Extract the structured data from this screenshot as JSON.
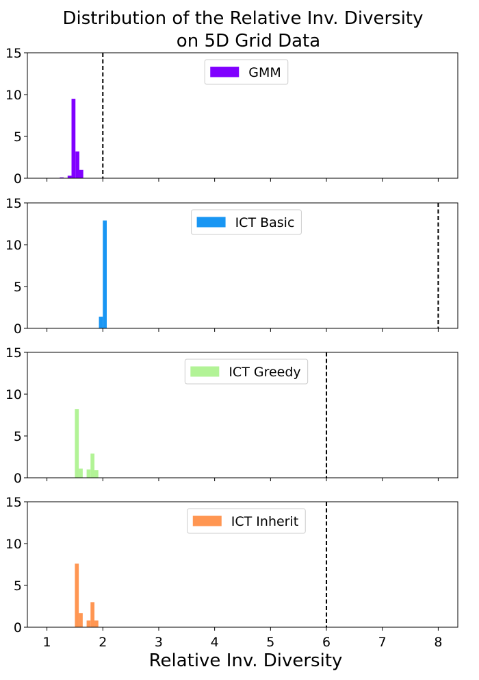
{
  "chart_data": {
    "type": "bar",
    "title_line1": "Distribution of the Relative Inv. Diversity",
    "title_line2": "on 5D Grid Data",
    "xlabel": "Relative Inv. Diversity",
    "ylabel": "",
    "xlim": [
      0.65,
      8.35
    ],
    "ylim": [
      0,
      15
    ],
    "xticks": [
      1,
      2,
      3,
      4,
      5,
      6,
      7,
      8
    ],
    "yticks": [
      0,
      5,
      10,
      15
    ],
    "bin_width": 0.07,
    "grid": false,
    "legend_position": "top-center",
    "panels": [
      {
        "name": "GMM",
        "color": "#8000ff",
        "reference_line_x": 2,
        "bins": [
          {
            "x": 1.23,
            "y": 0.1
          },
          {
            "x": 1.37,
            "y": 0.3
          },
          {
            "x": 1.44,
            "y": 9.5
          },
          {
            "x": 1.51,
            "y": 3.2
          },
          {
            "x": 1.58,
            "y": 1.0
          }
        ]
      },
      {
        "name": "ICT Basic",
        "color": "#1996f3",
        "reference_line_x": 8,
        "bins": [
          {
            "x": 1.93,
            "y": 1.4
          },
          {
            "x": 2.0,
            "y": 12.9
          }
        ]
      },
      {
        "name": "ICT Greedy",
        "color": "#b2f396",
        "reference_line_x": 6,
        "bins": [
          {
            "x": 1.5,
            "y": 8.2
          },
          {
            "x": 1.57,
            "y": 1.1
          },
          {
            "x": 1.71,
            "y": 1.0
          },
          {
            "x": 1.78,
            "y": 2.9
          },
          {
            "x": 1.85,
            "y": 0.9
          }
        ]
      },
      {
        "name": "ICT Inherit",
        "color": "#ff9652",
        "reference_line_x": 6,
        "bins": [
          {
            "x": 1.5,
            "y": 7.6
          },
          {
            "x": 1.57,
            "y": 1.7
          },
          {
            "x": 1.71,
            "y": 0.8
          },
          {
            "x": 1.78,
            "y": 3.0
          },
          {
            "x": 1.85,
            "y": 0.8
          }
        ]
      }
    ]
  }
}
